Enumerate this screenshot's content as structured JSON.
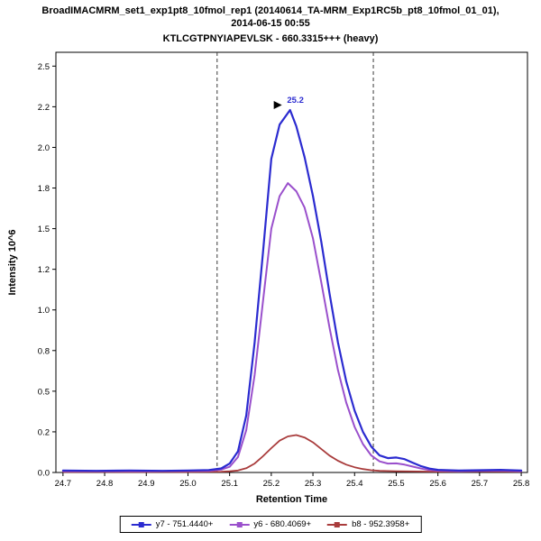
{
  "header": {
    "title_line1": "BroadIMACMRM_set1_exp1pt8_10fmol_rep1 (20140614_TA-MRM_Exp1RC5b_pt8_10fmol_01_01),",
    "title_line2": "2014-06-15 00:55",
    "subtitle": "KTLCGTPNYIAPEVLSK - 660.3315+++ (heavy)"
  },
  "chart_data": {
    "type": "line",
    "title": "KTLCGTPNYIAPEVLSK - 660.3315+++ (heavy)",
    "xlabel": "Retention Time",
    "ylabel": "Intensity 10^6",
    "xlim": [
      24.683,
      25.815
    ],
    "ylim": [
      0,
      2.585
    ],
    "x_ticks": [
      "24.7",
      "24.8",
      "24.9",
      "25.0",
      "25.1",
      "25.2",
      "25.3",
      "25.4",
      "25.5",
      "25.6",
      "25.7",
      "25.8"
    ],
    "y_ticks": [
      {
        "v": 0.0,
        "label": "0.0"
      },
      {
        "v": 0.25,
        "label": "0.2"
      },
      {
        "v": 0.5,
        "label": "0.5"
      },
      {
        "v": 0.75,
        "label": "0.8"
      },
      {
        "v": 1.0,
        "label": "1.0"
      },
      {
        "v": 1.25,
        "label": "1.2"
      },
      {
        "v": 1.5,
        "label": "1.5"
      },
      {
        "v": 1.75,
        "label": "1.8"
      },
      {
        "v": 2.0,
        "label": "2.0"
      },
      {
        "v": 2.25,
        "label": "2.2"
      },
      {
        "v": 2.5,
        "label": "2.5"
      }
    ],
    "integration_boundaries": [
      25.07,
      25.445
    ],
    "peak": {
      "label": "25.2",
      "x": 25.245,
      "y": 2.23
    },
    "series": [
      {
        "name": "y7 - 751.4440+",
        "color": "#2b2bd0",
        "width": 2.2,
        "points": [
          [
            24.7,
            0.012
          ],
          [
            24.78,
            0.01
          ],
          [
            24.86,
            0.012
          ],
          [
            24.94,
            0.01
          ],
          [
            25.0,
            0.012
          ],
          [
            25.05,
            0.015
          ],
          [
            25.08,
            0.025
          ],
          [
            25.1,
            0.055
          ],
          [
            25.12,
            0.13
          ],
          [
            25.14,
            0.35
          ],
          [
            25.16,
            0.8
          ],
          [
            25.18,
            1.35
          ],
          [
            25.2,
            1.93
          ],
          [
            25.22,
            2.14
          ],
          [
            25.245,
            2.23
          ],
          [
            25.26,
            2.13
          ],
          [
            25.28,
            1.94
          ],
          [
            25.3,
            1.7
          ],
          [
            25.32,
            1.42
          ],
          [
            25.34,
            1.1
          ],
          [
            25.36,
            0.8
          ],
          [
            25.38,
            0.56
          ],
          [
            25.4,
            0.38
          ],
          [
            25.42,
            0.25
          ],
          [
            25.44,
            0.16
          ],
          [
            25.46,
            0.105
          ],
          [
            25.48,
            0.088
          ],
          [
            25.5,
            0.092
          ],
          [
            25.52,
            0.082
          ],
          [
            25.54,
            0.06
          ],
          [
            25.56,
            0.038
          ],
          [
            25.58,
            0.024
          ],
          [
            25.6,
            0.016
          ],
          [
            25.65,
            0.012
          ],
          [
            25.7,
            0.014
          ],
          [
            25.75,
            0.016
          ],
          [
            25.8,
            0.012
          ]
        ]
      },
      {
        "name": "y6 - 680.4069+",
        "color": "#9a50cc",
        "width": 2.0,
        "points": [
          [
            24.7,
            0.008
          ],
          [
            24.8,
            0.008
          ],
          [
            24.9,
            0.008
          ],
          [
            25.0,
            0.009
          ],
          [
            25.05,
            0.01
          ],
          [
            25.08,
            0.018
          ],
          [
            25.1,
            0.035
          ],
          [
            25.12,
            0.095
          ],
          [
            25.14,
            0.26
          ],
          [
            25.16,
            0.6
          ],
          [
            25.18,
            1.05
          ],
          [
            25.2,
            1.5
          ],
          [
            25.22,
            1.7
          ],
          [
            25.24,
            1.78
          ],
          [
            25.26,
            1.73
          ],
          [
            25.28,
            1.63
          ],
          [
            25.3,
            1.44
          ],
          [
            25.32,
            1.17
          ],
          [
            25.34,
            0.89
          ],
          [
            25.36,
            0.63
          ],
          [
            25.38,
            0.43
          ],
          [
            25.4,
            0.28
          ],
          [
            25.42,
            0.175
          ],
          [
            25.44,
            0.105
          ],
          [
            25.46,
            0.068
          ],
          [
            25.48,
            0.055
          ],
          [
            25.5,
            0.056
          ],
          [
            25.52,
            0.048
          ],
          [
            25.54,
            0.036
          ],
          [
            25.56,
            0.024
          ],
          [
            25.58,
            0.015
          ],
          [
            25.6,
            0.011
          ],
          [
            25.65,
            0.008
          ],
          [
            25.7,
            0.01
          ],
          [
            25.75,
            0.011
          ],
          [
            25.8,
            0.008
          ]
        ]
      },
      {
        "name": "b8 - 952.3958+",
        "color": "#a93c3c",
        "width": 1.8,
        "points": [
          [
            24.7,
            0.004
          ],
          [
            24.9,
            0.004
          ],
          [
            25.0,
            0.004
          ],
          [
            25.08,
            0.005
          ],
          [
            25.1,
            0.007
          ],
          [
            25.12,
            0.012
          ],
          [
            25.14,
            0.026
          ],
          [
            25.16,
            0.055
          ],
          [
            25.18,
            0.1
          ],
          [
            25.2,
            0.15
          ],
          [
            25.22,
            0.196
          ],
          [
            25.24,
            0.222
          ],
          [
            25.26,
            0.23
          ],
          [
            25.28,
            0.215
          ],
          [
            25.3,
            0.185
          ],
          [
            25.32,
            0.145
          ],
          [
            25.34,
            0.104
          ],
          [
            25.36,
            0.072
          ],
          [
            25.38,
            0.048
          ],
          [
            25.4,
            0.032
          ],
          [
            25.42,
            0.021
          ],
          [
            25.44,
            0.014
          ],
          [
            25.46,
            0.01
          ],
          [
            25.5,
            0.008
          ],
          [
            25.55,
            0.006
          ],
          [
            25.6,
            0.005
          ],
          [
            25.7,
            0.006
          ],
          [
            25.8,
            0.005
          ]
        ]
      }
    ],
    "legend_position": "bottom",
    "grid": false
  }
}
